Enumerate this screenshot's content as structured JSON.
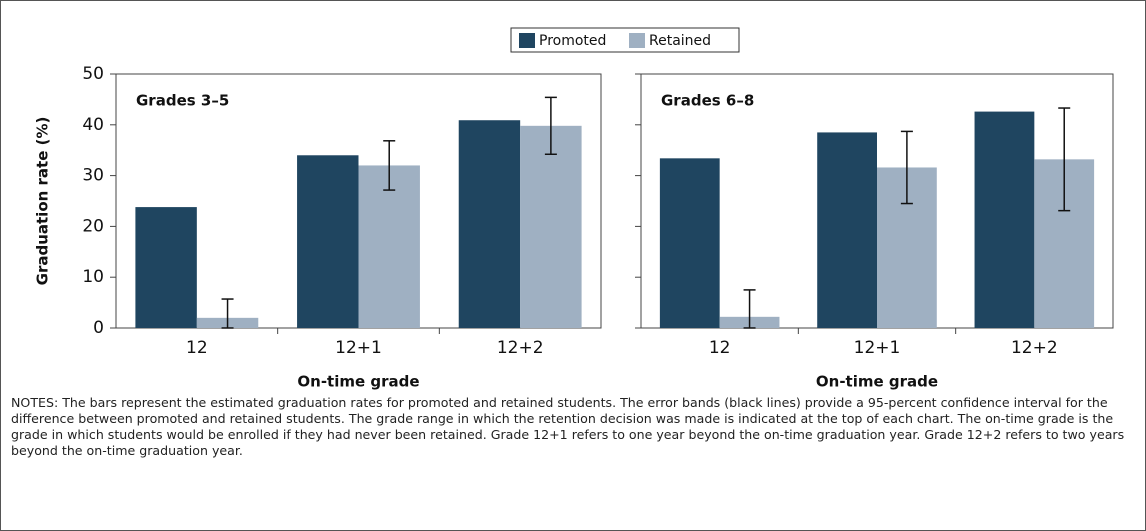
{
  "chart_data": [
    {
      "type": "bar",
      "title": "Grades 3–5",
      "ylabel": "Graduation rate (%)",
      "xlabel": "On-time grade",
      "categories": [
        "12",
        "12+1",
        "12+2"
      ],
      "series": [
        {
          "name": "Promoted",
          "color": "#1f4560",
          "values": [
            23.8,
            34,
            40.9
          ]
        },
        {
          "name": "Retained",
          "color": "#9fb0c2",
          "values": [
            2,
            32,
            39.8
          ],
          "errors": [
            3.7,
            4.85,
            5.6
          ]
        }
      ],
      "ylim": [
        0,
        50
      ],
      "yticks": [
        0,
        10,
        20,
        30,
        40,
        50
      ]
    },
    {
      "type": "bar",
      "title": "Grades 6–8",
      "xlabel": "On-time grade",
      "categories": [
        "12",
        "12+1",
        "12+2"
      ],
      "series": [
        {
          "color": "#1f4560",
          "values": [
            33.4,
            38.5,
            42.6
          ]
        },
        {
          "color": "#9fb0c2",
          "values": [
            2.2,
            31.6,
            33.2
          ],
          "errors": [
            5.3,
            7.1,
            10.1
          ]
        }
      ],
      "ylim": [
        0,
        50
      ],
      "yticks": [
        0,
        10,
        20,
        30,
        40,
        50
      ]
    }
  ],
  "notes": "NOTES: The bars represent the estimated graduation rates for promoted and retained students. The error bands (black lines) provide a 95-percent confidence interval for the difference between promoted and retained students. The grade range in which the retention decision was made is indicated at the top of each chart. The on-time grade is the grade in which students would be enrolled if they had never been retained. Grade 12+1 refers to one year beyond the on-time graduation year. Grade 12+2 refers to two years beyond the on-time graduation year."
}
